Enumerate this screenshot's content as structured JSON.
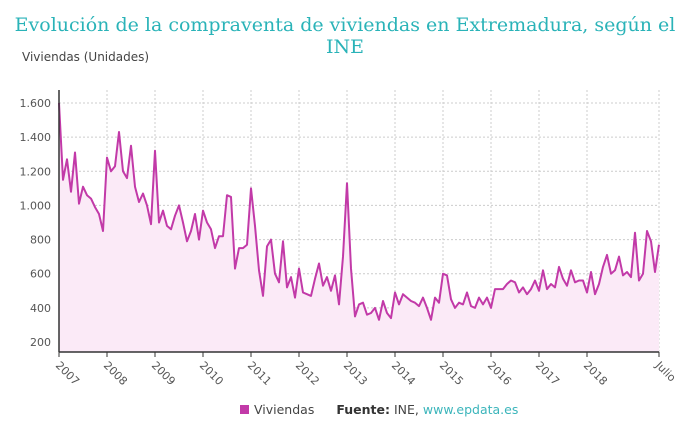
{
  "chart_data": {
    "type": "area",
    "title": "Evolución de la compraventa de viviendas en Extremadura, según el INE",
    "ylabel": "Viviendas (Unidades)",
    "xlabel": "",
    "x_start": "2007-01",
    "x_end": "2019-07",
    "x_frequency": "monthly",
    "x_tick_labels": [
      "2007",
      "2008",
      "2009",
      "2010",
      "2011",
      "2012",
      "2013",
      "2014",
      "2015",
      "2016",
      "2017",
      "2018",
      "Julio"
    ],
    "y_tick_labels": [
      "200",
      "400",
      "600",
      "800",
      "1.000",
      "1.200",
      "1.400",
      "1.600"
    ],
    "y_ticks": [
      200,
      400,
      600,
      800,
      1000,
      1200,
      1400,
      1600
    ],
    "ylim": [
      140,
      1640
    ],
    "grid": true,
    "legend_position": "bottom",
    "series": [
      {
        "name": "Viviendas",
        "color": "#c23aa8",
        "fill": "#fbeaf7",
        "values": [
          1600,
          1150,
          1270,
          1080,
          1310,
          1010,
          1110,
          1060,
          1040,
          990,
          950,
          850,
          1280,
          1200,
          1230,
          1430,
          1200,
          1160,
          1350,
          1110,
          1020,
          1070,
          1000,
          890,
          1320,
          900,
          970,
          880,
          860,
          940,
          1000,
          900,
          790,
          850,
          950,
          800,
          970,
          900,
          860,
          750,
          820,
          820,
          1060,
          1050,
          630,
          750,
          750,
          770,
          1100,
          880,
          620,
          470,
          760,
          800,
          600,
          550,
          790,
          520,
          580,
          460,
          630,
          490,
          480,
          470,
          570,
          660,
          530,
          580,
          500,
          590,
          420,
          700,
          1130,
          630,
          350,
          420,
          430,
          360,
          370,
          400,
          330,
          440,
          370,
          340,
          490,
          420,
          480,
          460,
          440,
          430,
          410,
          460,
          400,
          330,
          460,
          430,
          600,
          590,
          450,
          400,
          430,
          420,
          490,
          410,
          400,
          460,
          420,
          460,
          400,
          510,
          510,
          510,
          540,
          560,
          550,
          490,
          520,
          480,
          510,
          560,
          500,
          620,
          510,
          540,
          520,
          640,
          570,
          530,
          620,
          550,
          560,
          560,
          490,
          610,
          480,
          540,
          640,
          710,
          600,
          620,
          700,
          590,
          610,
          580,
          840,
          560,
          600,
          850,
          790,
          610,
          770
        ]
      }
    ]
  },
  "legend": {
    "series_label": "Viviendas"
  },
  "source": {
    "label": "Fuente:",
    "text": "INE,",
    "link": "www.epdata.es"
  }
}
